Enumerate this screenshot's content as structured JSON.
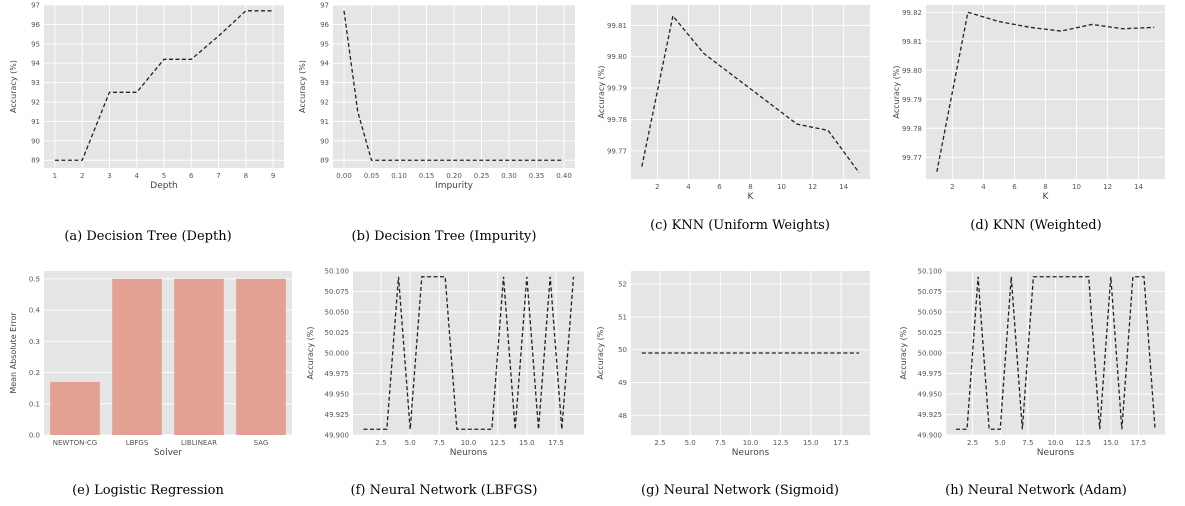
{
  "theme": {
    "bg": "#e5e5e5",
    "grid": "#ffffff",
    "line": "#222222",
    "bar": "#e2a193"
  },
  "chart_data": [
    {
      "id": "a",
      "type": "line",
      "caption": "(a) Decision Tree (Depth)",
      "xlabel": "Depth",
      "ylabel": "Accuracy (%)",
      "xlim": [
        0.6,
        9.4
      ],
      "ylim": [
        88.6,
        97
      ],
      "xticks": [
        1,
        2,
        3,
        4,
        5,
        6,
        7,
        8,
        9
      ],
      "xtick_labels": [
        "1",
        "2",
        "3",
        "4",
        "5",
        "6",
        "7",
        "8",
        "9"
      ],
      "yticks": [
        89,
        90,
        91,
        92,
        93,
        94,
        95,
        96,
        97
      ],
      "ytick_labels": [
        "89",
        "90",
        "91",
        "92",
        "93",
        "94",
        "95",
        "96",
        "97"
      ],
      "x": [
        1,
        2,
        3,
        4,
        5,
        6,
        7,
        8,
        9
      ],
      "y": [
        89.0,
        89.0,
        92.5,
        92.5,
        94.2,
        94.2,
        95.4,
        96.7,
        96.7
      ]
    },
    {
      "id": "b",
      "type": "line",
      "caption": "(b) Decision Tree (Impurity)",
      "xlabel": "Impurity",
      "ylabel": "Accuracy (%)",
      "xlim": [
        -0.02,
        0.42
      ],
      "ylim": [
        88.6,
        97
      ],
      "xticks": [
        0,
        0.05,
        0.1,
        0.15,
        0.2,
        0.25,
        0.3,
        0.35,
        0.4
      ],
      "xtick_labels": [
        "0.00",
        "0.05",
        "0.10",
        "0.15",
        "0.20",
        "0.25",
        "0.30",
        "0.35",
        "0.40"
      ],
      "yticks": [
        89,
        90,
        91,
        92,
        93,
        94,
        95,
        96,
        97
      ],
      "ytick_labels": [
        "89",
        "90",
        "91",
        "92",
        "93",
        "94",
        "95",
        "96",
        "97"
      ],
      "x": [
        0,
        0.025,
        0.05,
        0.1,
        0.15,
        0.2,
        0.25,
        0.3,
        0.35,
        0.4
      ],
      "y": [
        96.7,
        91.5,
        89.0,
        89.0,
        89.0,
        89.0,
        89.0,
        89.0,
        89.0,
        89.0
      ]
    },
    {
      "id": "c",
      "type": "line",
      "caption": "(c) KNN (Uniform Weights)",
      "xlabel": "K",
      "ylabel": "Accuracy (%)",
      "xlim": [
        0.3,
        15.7
      ],
      "ylim": [
        99.761,
        99.8165
      ],
      "xticks": [
        2,
        4,
        6,
        8,
        10,
        12,
        14
      ],
      "xtick_labels": [
        "2",
        "4",
        "6",
        "8",
        "10",
        "12",
        "14"
      ],
      "yticks": [
        99.77,
        99.78,
        99.79,
        99.8,
        99.81
      ],
      "ytick_labels": [
        "99.77",
        "99.78",
        "99.79",
        "99.80",
        "99.81"
      ],
      "x": [
        1,
        3,
        5,
        7,
        9,
        11,
        13,
        15
      ],
      "y": [
        99.765,
        99.813,
        99.801,
        99.7935,
        99.786,
        99.7785,
        99.7765,
        99.763
      ]
    },
    {
      "id": "d",
      "type": "line",
      "caption": "(d) KNN (Weighted)",
      "xlabel": "K",
      "ylabel": "Accuracy (%)",
      "xlim": [
        0.3,
        15.7
      ],
      "ylim": [
        99.7625,
        99.8225
      ],
      "xticks": [
        2,
        4,
        6,
        8,
        10,
        12,
        14
      ],
      "xtick_labels": [
        "2",
        "4",
        "6",
        "8",
        "10",
        "12",
        "14"
      ],
      "yticks": [
        99.77,
        99.78,
        99.79,
        99.8,
        99.81,
        99.82
      ],
      "ytick_labels": [
        "99.77",
        "99.78",
        "99.79",
        "99.80",
        "99.81",
        "99.82"
      ],
      "x": [
        1,
        3,
        5,
        7,
        9,
        11,
        13,
        15
      ],
      "y": [
        99.765,
        99.82,
        99.8168,
        99.8148,
        99.8135,
        99.8158,
        99.8143,
        99.8148
      ]
    },
    {
      "id": "e",
      "type": "bar",
      "caption": "(e) Logistic Regression",
      "xlabel": "Solver",
      "ylabel": "Mean Absolute Error",
      "ylim": [
        0,
        0.525
      ],
      "categories": [
        "NEWTON-CG",
        "LBFGS",
        "LIBLINEAR",
        "SAG"
      ],
      "values": [
        0.17,
        0.5,
        0.5,
        0.5
      ],
      "yticks": [
        0,
        0.1,
        0.2,
        0.3,
        0.4,
        0.5
      ],
      "ytick_labels": [
        "0.0",
        "0.1",
        "0.2",
        "0.3",
        "0.4",
        "0.5"
      ]
    },
    {
      "id": "f",
      "type": "line",
      "caption": "(f) Neural Network (LBFGS)",
      "xlabel": "Neurons",
      "ylabel": "Accuracy (%)",
      "xlim": [
        0.1,
        19.9
      ],
      "ylim": [
        49.9,
        50.1
      ],
      "xticks": [
        2.5,
        5,
        7.5,
        10,
        12.5,
        15,
        17.5
      ],
      "xtick_labels": [
        "2.5",
        "5.0",
        "7.5",
        "10.0",
        "12.5",
        "15.0",
        "17.5"
      ],
      "yticks": [
        49.9,
        49.925,
        49.95,
        49.975,
        50.0,
        50.025,
        50.05,
        50.075,
        50.1
      ],
      "ytick_labels": [
        "49.900",
        "49.925",
        "49.950",
        "49.975",
        "50.000",
        "50.025",
        "50.050",
        "50.075",
        "50.100"
      ],
      "x": [
        1,
        2,
        3,
        4,
        5,
        6,
        7,
        8,
        9,
        10,
        11,
        12,
        13,
        14,
        15,
        16,
        17,
        18,
        19
      ],
      "y": [
        49.907,
        49.907,
        49.907,
        50.093,
        49.907,
        50.093,
        50.093,
        50.093,
        49.907,
        49.907,
        49.907,
        49.907,
        50.093,
        49.907,
        50.093,
        49.907,
        50.093,
        49.907,
        50.093
      ]
    },
    {
      "id": "g",
      "type": "line",
      "caption": "(g) Neural Network (Sigmoid)",
      "xlabel": "Neurons",
      "ylabel": "Accuracy (%)",
      "xlim": [
        0.1,
        19.9
      ],
      "ylim": [
        47.4,
        52.4
      ],
      "xticks": [
        2.5,
        5,
        7.5,
        10,
        12.5,
        15,
        17.5
      ],
      "xtick_labels": [
        "2.5",
        "5.0",
        "7.5",
        "10.0",
        "12.5",
        "15.0",
        "17.5"
      ],
      "yticks": [
        48,
        49,
        50,
        51,
        52
      ],
      "ytick_labels": [
        "48",
        "49",
        "50",
        "51",
        "52"
      ],
      "x": [
        1,
        2,
        3,
        4,
        5,
        6,
        7,
        8,
        9,
        10,
        11,
        12,
        13,
        14,
        15,
        16,
        17,
        18,
        19
      ],
      "y": [
        49.9,
        49.9,
        49.9,
        49.9,
        49.9,
        49.9,
        49.9,
        49.9,
        49.9,
        49.9,
        49.9,
        49.9,
        49.9,
        49.9,
        49.9,
        49.9,
        49.9,
        49.9,
        49.9
      ]
    },
    {
      "id": "h",
      "type": "line",
      "caption": "(h) Neural Network (Adam)",
      "xlabel": "Neurons",
      "ylabel": "Accuracy (%)",
      "xlim": [
        0.1,
        19.9
      ],
      "ylim": [
        49.9,
        50.1
      ],
      "xticks": [
        2.5,
        5,
        7.5,
        10,
        12.5,
        15,
        17.5
      ],
      "xtick_labels": [
        "2.5",
        "5.0",
        "7.5",
        "10.0",
        "12.5",
        "15.0",
        "17.5"
      ],
      "yticks": [
        49.9,
        49.925,
        49.95,
        49.975,
        50.0,
        50.025,
        50.05,
        50.075,
        50.1
      ],
      "ytick_labels": [
        "49.900",
        "49.925",
        "49.950",
        "49.975",
        "50.000",
        "50.025",
        "50.050",
        "50.075",
        "50.100"
      ],
      "x": [
        1,
        2,
        3,
        4,
        5,
        6,
        7,
        8,
        9,
        10,
        11,
        12,
        13,
        14,
        15,
        16,
        17,
        18,
        19
      ],
      "y": [
        49.907,
        49.907,
        50.093,
        49.907,
        49.907,
        50.093,
        49.907,
        50.093,
        50.093,
        50.093,
        50.093,
        50.093,
        50.093,
        49.907,
        50.093,
        49.907,
        50.093,
        50.093,
        49.907
      ]
    }
  ]
}
